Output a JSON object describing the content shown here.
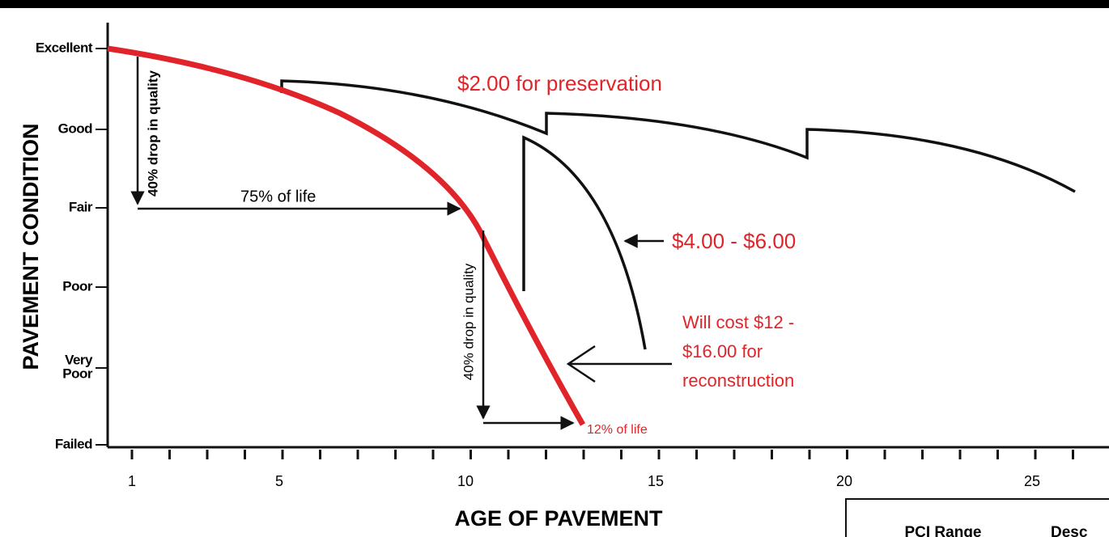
{
  "axes": {
    "y_title": "PAVEMENT CONDITION",
    "x_title": "AGE OF PAVEMENT",
    "y_labels": [
      "Excellent",
      "Good",
      "Fair",
      "Poor",
      "Very",
      "Poor",
      "Failed"
    ],
    "x_labels": [
      "1",
      "5",
      "10",
      "15",
      "20",
      "25"
    ]
  },
  "annotations": {
    "drop_1": "40% drop in quality",
    "life_75": "75% of life",
    "drop_2": "40% drop in quality",
    "life_12": "12% of life",
    "preservation": "$2.00 for preservation",
    "rehab": "$4.00 - $6.00",
    "reconstruction": [
      "Will cost $12 -",
      "$16.00 for",
      "reconstruction"
    ]
  },
  "table": {
    "headers": [
      "PCI Range",
      "Desc"
    ]
  }
}
